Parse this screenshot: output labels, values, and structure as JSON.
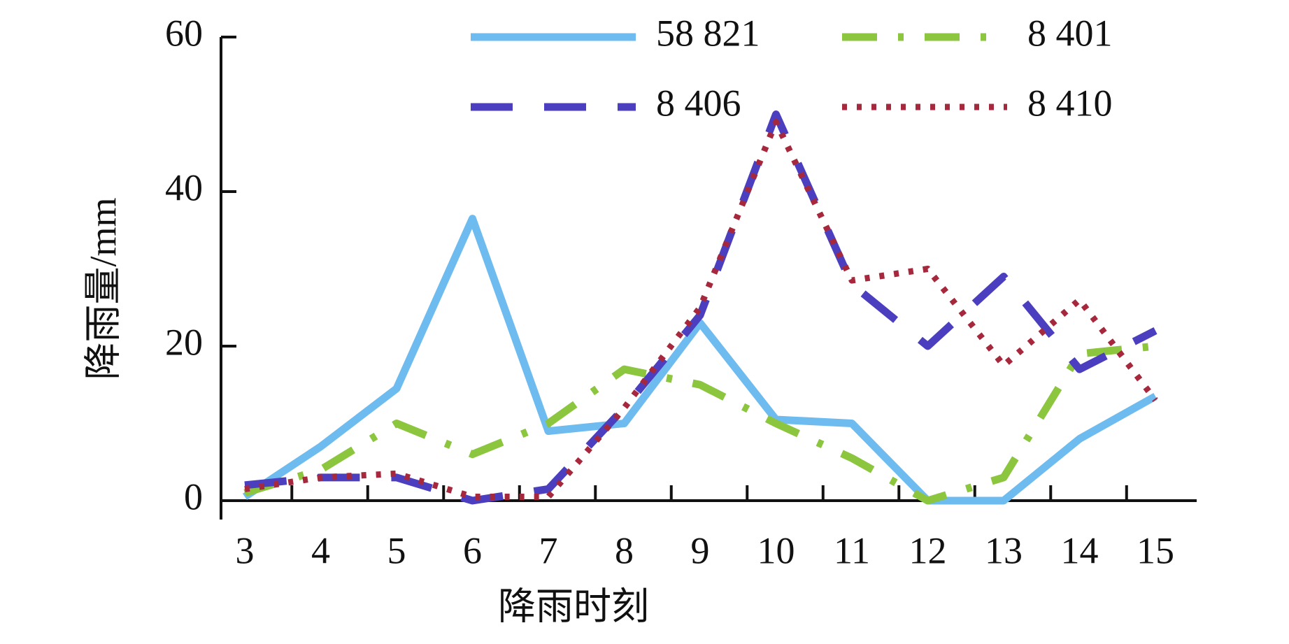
{
  "chart_data": {
    "type": "line",
    "x_label": "降雨时刻",
    "y_label": "降雨量/mm",
    "categories": [
      "3",
      "4",
      "5",
      "6",
      "7",
      "8",
      "9",
      "10",
      "11",
      "12",
      "13",
      "14",
      "15"
    ],
    "series": [
      {
        "name": "58 821",
        "color": "#6ebbf0",
        "values": [
          0.5,
          7,
          14.5,
          36.5,
          9,
          10,
          23,
          10.5,
          10,
          0,
          0,
          8,
          13.5
        ]
      },
      {
        "name": "8 401",
        "color": "#8cc63f",
        "values": [
          1,
          4,
          10,
          6,
          10,
          17,
          15,
          10,
          5.5,
          0,
          3,
          19,
          20
        ]
      },
      {
        "name": "8 406",
        "color": "#4c3fbf",
        "values": [
          2,
          3,
          3,
          0,
          1.5,
          12,
          24,
          50,
          28,
          20,
          29,
          17,
          22
        ]
      },
      {
        "name": "8 410",
        "color": "#a6283c",
        "values": [
          1.5,
          3,
          3.5,
          0.5,
          0.5,
          12,
          25,
          49,
          28.5,
          30,
          17.5,
          26,
          13
        ]
      }
    ],
    "ylim": [
      0,
      60
    ],
    "yticks": [
      0,
      20,
      40,
      60
    ]
  }
}
